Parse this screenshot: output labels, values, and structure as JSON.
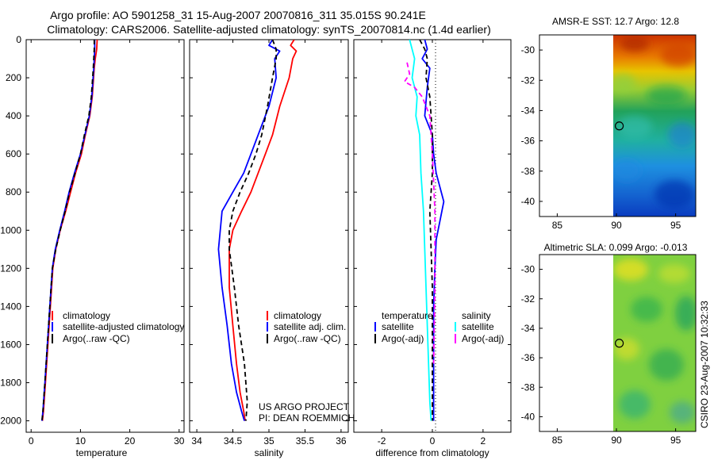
{
  "header": {
    "line1": "Argo profile: AO 5901258_31 15-Aug-2007 20070816_311 35.015S 90.241E",
    "line2": "Climatology: CARS2006. Satellite-adjusted climatology: synTS_20070814.nc (1.4d earlier)"
  },
  "credit": {
    "line1": "US ARGO PROJECT",
    "line2": "PI: DEAN ROEMMICH"
  },
  "timestamp": "CSIRO 23-Aug-2007 10:32:33",
  "colors": {
    "climatology": "#ff0000",
    "satellite": "#0000ff",
    "argo": "#000000",
    "sal_satellite": "#00ffff",
    "sal_argo": "#ff00ff"
  },
  "chart_data": [
    {
      "type": "line",
      "xlabel": "temperature",
      "xlim": [
        -1,
        31
      ],
      "xticks": [
        0,
        10,
        20,
        30
      ],
      "ylim": [
        0,
        2060
      ],
      "yticks": [
        0,
        200,
        400,
        600,
        800,
        1000,
        1200,
        1400,
        1600,
        1800,
        2000
      ],
      "legend": [
        "climatology",
        "satellite-adjusted climatology",
        "Argo(..raw -QC)"
      ],
      "series": [
        {
          "name": "climatology",
          "color": "#ff0000",
          "width": 1.8,
          "dash": "",
          "x": [
            13.4,
            13.3,
            13.0,
            12.8,
            12.4,
            11.9,
            11.0,
            10.2,
            9.0,
            8.0,
            7.0,
            5.9,
            5.0,
            4.4,
            3.9,
            3.4,
            2.9,
            2.5,
            2.3
          ],
          "y": [
            0,
            50,
            100,
            150,
            300,
            400,
            500,
            600,
            700,
            800,
            900,
            1000,
            1100,
            1200,
            1400,
            1600,
            1800,
            1950,
            2000
          ]
        },
        {
          "name": "satellite-adjusted climatology",
          "color": "#0000ff",
          "width": 1.8,
          "dash": "",
          "x": [
            12.9,
            12.9,
            12.8,
            12.7,
            12.3,
            11.8,
            10.9,
            10.0,
            8.8,
            7.7,
            6.8,
            5.8,
            4.9,
            4.3,
            3.8,
            3.3,
            2.8,
            2.4,
            2.2
          ],
          "y": [
            0,
            50,
            100,
            150,
            300,
            400,
            500,
            600,
            700,
            800,
            900,
            1000,
            1100,
            1200,
            1400,
            1600,
            1800,
            1950,
            2000
          ]
        },
        {
          "name": "Argo(..raw -QC)",
          "color": "#000000",
          "width": 1.8,
          "dash": "6,4",
          "x": [
            12.8,
            12.8,
            12.7,
            12.6,
            12.2,
            11.7,
            10.8,
            10.0,
            8.9,
            7.8,
            6.9,
            5.9,
            5.0,
            4.3,
            3.8,
            3.3,
            2.8,
            2.4,
            2.2
          ],
          "y": [
            0,
            50,
            100,
            150,
            300,
            400,
            500,
            600,
            700,
            800,
            900,
            1000,
            1100,
            1200,
            1400,
            1600,
            1800,
            1950,
            2000
          ]
        }
      ]
    },
    {
      "type": "line",
      "xlabel": "salinity",
      "xlim": [
        33.9,
        36.1
      ],
      "xticks": [
        34,
        34.5,
        35,
        35.5,
        36
      ],
      "ylim": [
        0,
        2060
      ],
      "yticks": [
        0,
        200,
        400,
        600,
        800,
        1000,
        1200,
        1400,
        1600,
        1800,
        2000
      ],
      "legend": [
        "climatology",
        "satellite adj. clim.",
        "Argo(..raw -QC)"
      ],
      "series": [
        {
          "name": "climatology",
          "color": "#ff0000",
          "width": 1.8,
          "dash": "",
          "x": [
            35.35,
            35.3,
            35.38,
            35.33,
            35.28,
            35.15,
            35.05,
            34.95,
            34.85,
            34.75,
            34.62,
            34.5,
            34.45,
            34.45,
            34.5,
            34.55,
            34.6,
            34.65,
            34.67
          ],
          "y": [
            0,
            30,
            60,
            100,
            200,
            350,
            500,
            600,
            700,
            800,
            900,
            1000,
            1100,
            1300,
            1500,
            1700,
            1850,
            1950,
            2000
          ]
        },
        {
          "name": "satellite adj. clim.",
          "color": "#0000ff",
          "width": 1.8,
          "dash": "",
          "x": [
            35.05,
            35.0,
            35.15,
            35.08,
            35.1,
            35.0,
            34.85,
            34.75,
            34.65,
            34.5,
            34.35,
            34.3,
            34.35,
            34.42,
            34.48,
            34.55,
            34.62,
            34.66
          ],
          "y": [
            0,
            30,
            60,
            100,
            200,
            350,
            500,
            600,
            700,
            800,
            900,
            1100,
            1300,
            1500,
            1700,
            1850,
            1950,
            2000
          ]
        },
        {
          "name": "Argo(..raw -QC)",
          "color": "#000000",
          "width": 1.8,
          "dash": "6,4",
          "x": [
            35.05,
            35.1,
            35.1,
            35.05,
            34.98,
            34.9,
            34.82,
            34.72,
            34.6,
            34.5,
            34.45,
            34.45,
            34.52,
            34.58,
            34.66,
            34.7,
            34.68
          ],
          "y": [
            0,
            50,
            100,
            200,
            350,
            500,
            600,
            700,
            800,
            900,
            1000,
            1100,
            1300,
            1500,
            1700,
            1900,
            2000
          ]
        }
      ]
    },
    {
      "type": "line",
      "xlabel": "difference from climatology",
      "xlim": [
        -3.1,
        3.1
      ],
      "xticks": [
        -2,
        0,
        2
      ],
      "ylim": [
        0,
        2060
      ],
      "yticks": [
        0,
        200,
        400,
        600,
        800,
        1000,
        1200,
        1400,
        1600,
        1800,
        2000
      ],
      "legend_temperature": {
        "title": "temperature",
        "items": [
          "satellite",
          "Argo(-adj)"
        ]
      },
      "legend_salinity": {
        "title": "salinity",
        "items": [
          "satellite",
          "Argo(-adj)"
        ]
      },
      "series": [
        {
          "name": "temperature satellite",
          "color": "#0000ff",
          "width": 1.8,
          "dash": "",
          "x": [
            -0.3,
            -0.2,
            -0.4,
            -0.1,
            -0.2,
            -0.3,
            0.0,
            0.05,
            0.15,
            0.35,
            0.45,
            0.3,
            0.15,
            0.1,
            0.05,
            0.05,
            0.05,
            0.05,
            0.05
          ],
          "y": [
            0,
            50,
            100,
            150,
            250,
            400,
            500,
            600,
            700,
            800,
            850,
            950,
            1050,
            1200,
            1400,
            1600,
            1800,
            1950,
            2000
          ]
        },
        {
          "name": "temperature Argo(-adj)",
          "color": "#000000",
          "width": 1.8,
          "dash": "6,4",
          "x": [
            -0.5,
            -0.3,
            -0.2,
            -0.25,
            -0.1,
            -0.05,
            0.0,
            0.0,
            -0.1,
            -0.05,
            0.0,
            0.0,
            0.0,
            0.0,
            0.0
          ],
          "y": [
            0,
            50,
            100,
            200,
            300,
            400,
            500,
            700,
            900,
            1100,
            1300,
            1500,
            1700,
            1900,
            2000
          ]
        },
        {
          "name": "salinity satellite",
          "color": "#00ffff",
          "width": 1.8,
          "dash": "",
          "x": [
            -0.9,
            -0.7,
            -0.8,
            -0.6,
            -0.65,
            -0.5,
            -0.45,
            -0.35,
            -0.3,
            -0.25,
            -0.2,
            -0.15,
            -0.1,
            -0.05
          ],
          "y": [
            0,
            100,
            200,
            300,
            400,
            500,
            700,
            900,
            1100,
            1300,
            1500,
            1700,
            1900,
            2000
          ]
        },
        {
          "name": "salinity Argo(-adj)",
          "color": "#ff00ff",
          "width": 1.8,
          "dash": "6,4",
          "x": [
            -1.0,
            -0.9,
            -1.1,
            -0.7,
            -0.4,
            -0.1,
            0.0,
            0.1,
            0.1,
            0.05
          ],
          "y": [
            120,
            180,
            220,
            250,
            300,
            400,
            600,
            900,
            1300,
            1700
          ]
        }
      ]
    },
    {
      "type": "heatmap",
      "title": "AMSR-E SST: 12.7 Argo: 12.8",
      "xlim": [
        83.5,
        96.7
      ],
      "xticks": [
        85,
        90,
        95
      ],
      "ylim": [
        -41,
        -29
      ],
      "yticks": [
        -30,
        -32,
        -34,
        -36,
        -38,
        -40
      ],
      "data_xlim": [
        90,
        96.7
      ],
      "marker": {
        "lon": 90.241,
        "lat": -35.015
      }
    },
    {
      "type": "heatmap",
      "title": "Altimetric SLA: 0.099 Argo: -0.013",
      "xlim": [
        83.5,
        96.7
      ],
      "xticks": [
        85,
        90,
        95
      ],
      "ylim": [
        -41,
        -29
      ],
      "yticks": [
        -30,
        -32,
        -34,
        -36,
        -38,
        -40
      ],
      "data_xlim": [
        90,
        96.7
      ],
      "marker": {
        "lon": 90.241,
        "lat": -35.015
      }
    }
  ]
}
